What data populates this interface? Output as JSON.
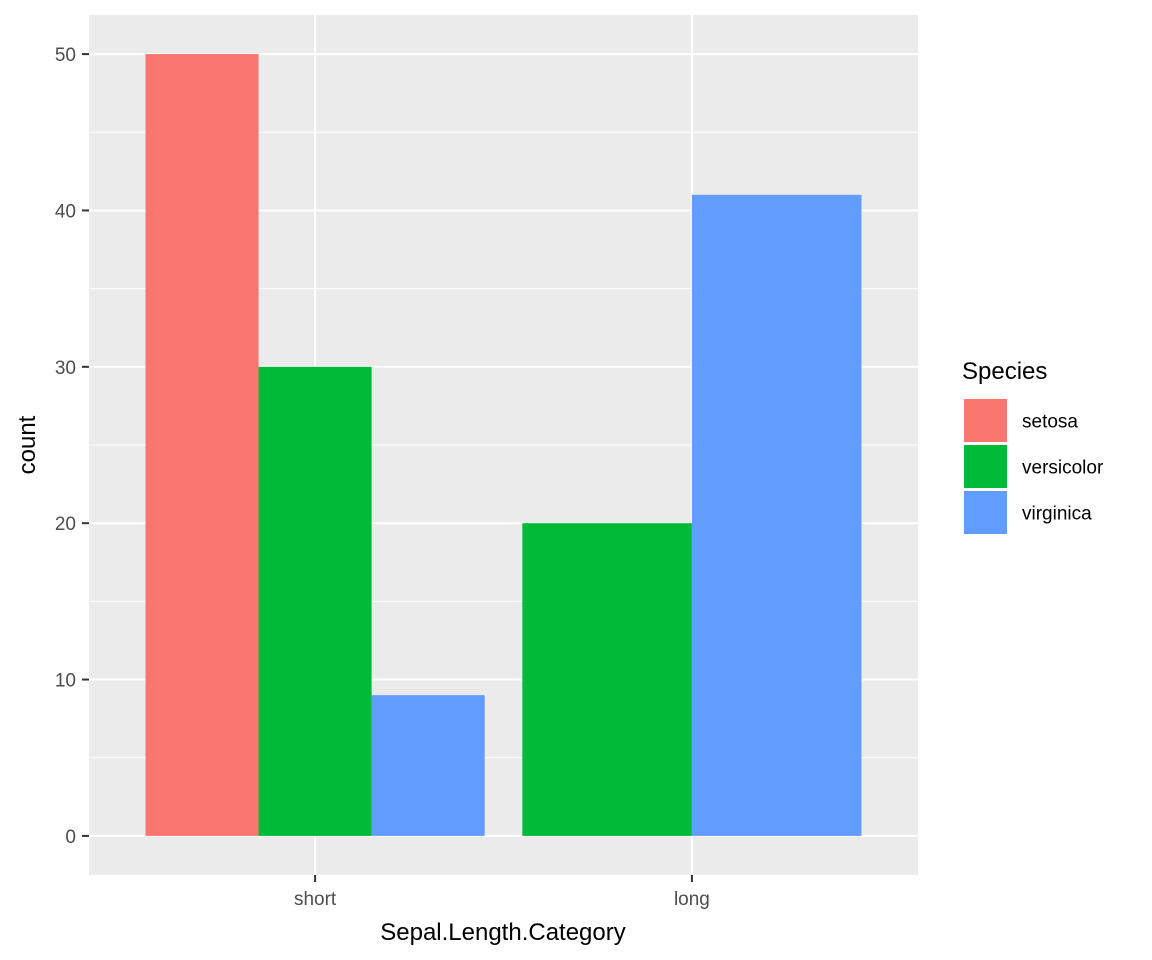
{
  "chart_data": {
    "type": "bar",
    "position": "dodge",
    "categories": [
      "short",
      "long"
    ],
    "series": [
      {
        "name": "setosa",
        "values": [
          50,
          0
        ],
        "color": "#F8766D"
      },
      {
        "name": "versicolor",
        "values": [
          30,
          20
        ],
        "color": "#00BA38"
      },
      {
        "name": "virginica",
        "values": [
          9,
          41
        ],
        "color": "#619CFF"
      }
    ],
    "xlabel": "Sepal.Length.Category",
    "ylabel": "count",
    "ylim": [
      -2.5,
      52.5
    ],
    "yticks": [
      0,
      10,
      20,
      30,
      40,
      50
    ],
    "grid": true,
    "panel_background": "#EBEBEB",
    "legend": {
      "title": "Species",
      "placement": "right"
    }
  }
}
